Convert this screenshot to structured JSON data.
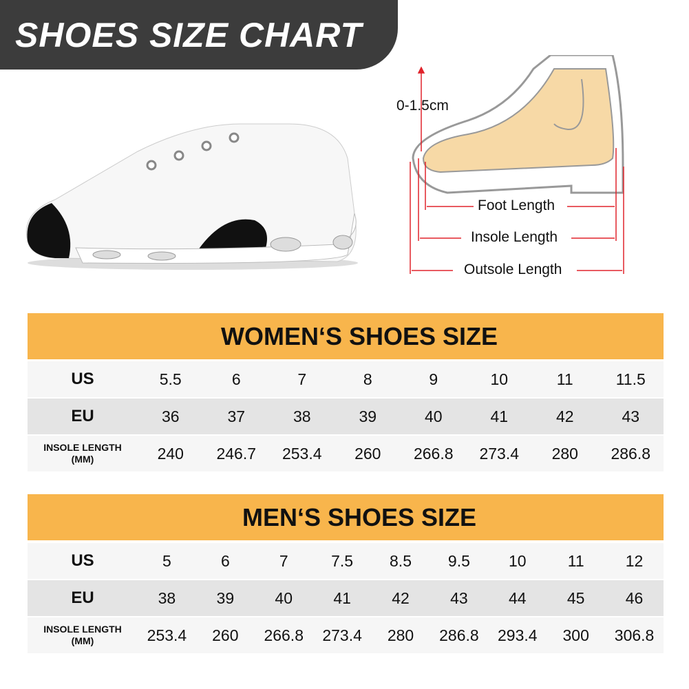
{
  "title": "SHOES SIZE CHART",
  "diagram": {
    "toe_gap": "0-1.5cm",
    "foot_length": "Foot Length",
    "insole_length": "Insole Length",
    "outsole_length": "Outsole Length"
  },
  "women": {
    "heading": "WOMEN‘S SHOES SIZE",
    "labels": {
      "us": "US",
      "eu": "EU",
      "insole": "INSOLE LENGTH",
      "unit": "(MM)"
    },
    "us": [
      "5.5",
      "6",
      "7",
      "8",
      "9",
      "10",
      "11",
      "11.5"
    ],
    "eu": [
      "36",
      "37",
      "38",
      "39",
      "40",
      "41",
      "42",
      "43"
    ],
    "insole": [
      "240",
      "246.7",
      "253.4",
      "260",
      "266.8",
      "273.4",
      "280",
      "286.8"
    ]
  },
  "men": {
    "heading": "MEN‘S SHOES SIZE",
    "labels": {
      "us": "US",
      "eu": "EU",
      "insole": "INSOLE LENGTH",
      "unit": "(MM)"
    },
    "us": [
      "5",
      "6",
      "7",
      "7.5",
      "8.5",
      "9.5",
      "10",
      "11",
      "12"
    ],
    "eu": [
      "38",
      "39",
      "40",
      "41",
      "42",
      "43",
      "44",
      "45",
      "46"
    ],
    "insole": [
      "253.4",
      "260",
      "266.8",
      "273.4",
      "280",
      "286.8",
      "293.4",
      "300",
      "306.8"
    ]
  },
  "colors": {
    "banner": "#3c3c3c",
    "header": "#f8b54c",
    "measure": "#e0232b",
    "foot": "#f7d9a6"
  }
}
